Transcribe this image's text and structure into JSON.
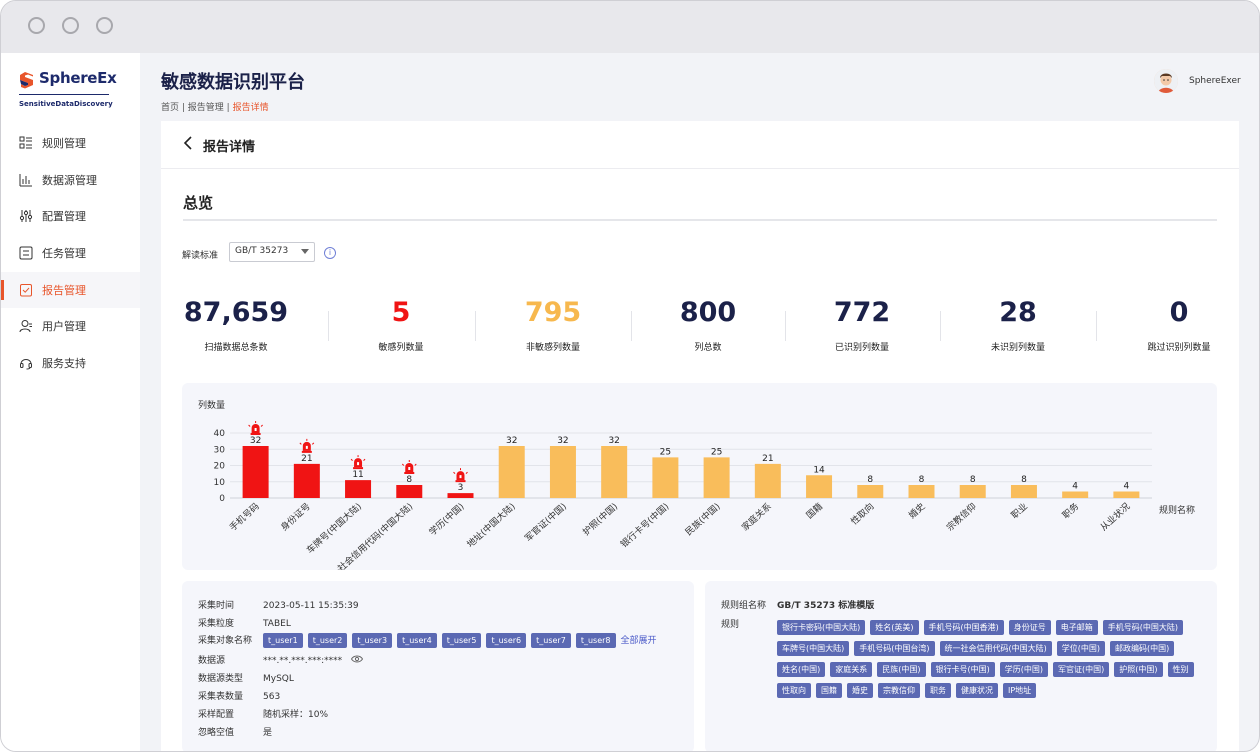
{
  "app": {
    "logo_name": "SphereEx",
    "logo_sub": "SensitiveDataDiscovery",
    "title": "敏感数据识别平台",
    "user_name": "SphereExer"
  },
  "breadcrumb": {
    "home": "首页",
    "sep1": " | ",
    "reports": "报告管理",
    "sep2": " | ",
    "current": "报告详情"
  },
  "sidebar": {
    "items": [
      {
        "label": "规则管理",
        "icon": "list-rules-icon"
      },
      {
        "label": "数据源管理",
        "icon": "bar-chart-icon"
      },
      {
        "label": "配置管理",
        "icon": "sliders-icon"
      },
      {
        "label": "任务管理",
        "icon": "task-list-icon"
      },
      {
        "label": "报告管理",
        "icon": "report-check-icon",
        "active": true
      },
      {
        "label": "用户管理",
        "icon": "user-icon"
      },
      {
        "label": "服务支持",
        "icon": "headset-icon"
      }
    ]
  },
  "detail": {
    "back_icon": "chevron-left-icon",
    "title": "报告详情",
    "overview_title": "总览",
    "standard_label": "解读标准",
    "standard_value": "GB/T 35273",
    "info_icon": "info-icon",
    "info_glyph": "i"
  },
  "stats": [
    {
      "value": "87,659",
      "label": "扫描数据总条数",
      "color": "#1b2149"
    },
    {
      "value": "5",
      "label": "敏感列数量",
      "color": "#f01414"
    },
    {
      "value": "795",
      "label": "非敏感列数量",
      "color": "#f7b84e"
    },
    {
      "value": "800",
      "label": "列总数",
      "color": "#1b2149"
    },
    {
      "value": "772",
      "label": "已识别列数量",
      "color": "#1b2149"
    },
    {
      "value": "28",
      "label": "未识别列数量",
      "color": "#1b2149"
    },
    {
      "value": "0",
      "label": "跳过识别列数量",
      "color": "#1b2149"
    }
  ],
  "chart_data": {
    "type": "bar",
    "ylabel": "列数量",
    "xlabel": "规则名称",
    "ylim": [
      0,
      40
    ],
    "yticks": [
      0,
      10,
      20,
      30,
      40
    ],
    "grid": true,
    "categories": [
      "手机号码",
      "身份证号",
      "车牌号(中国大陆)",
      "统一社会信用代码(中国大陆)",
      "学历(中国)",
      "地址(中国大陆)",
      "军官证(中国)",
      "护照(中国)",
      "银行卡号(中国)",
      "民族(中国)",
      "家庭关系",
      "国籍",
      "性取向",
      "婚史",
      "宗教信仰",
      "职业",
      "职务",
      "从业状况"
    ],
    "values": [
      32,
      21,
      11,
      8,
      3,
      32,
      32,
      32,
      25,
      25,
      21,
      14,
      8,
      8,
      8,
      8,
      4,
      4
    ],
    "sensitive": [
      true,
      true,
      true,
      true,
      true,
      false,
      false,
      false,
      false,
      false,
      false,
      false,
      false,
      false,
      false,
      false,
      false,
      false
    ],
    "colors": {
      "sensitive": "#f01414",
      "normal": "#f9bd5b"
    },
    "alert_icon": "alarm-light-icon"
  },
  "collection": {
    "rows": [
      {
        "key": "采集时间",
        "value": "2023-05-11  15:35:39"
      },
      {
        "key": "采集粒度",
        "value": "TABEL"
      },
      {
        "key": "采集对象名称",
        "tags": [
          "t_user1",
          "t_user2",
          "t_user3",
          "t_user4",
          "t_user5",
          "t_user6",
          "t_user7",
          "t_user8"
        ],
        "expand": "全部展开"
      },
      {
        "key": "数据源",
        "value": "***.**.***.***:****",
        "icon": "eye-icon"
      },
      {
        "key": "数据源类型",
        "value": "MySQL"
      },
      {
        "key": "采集表数量",
        "value": "563"
      },
      {
        "key": "采样配置",
        "value": "随机采样：10%"
      },
      {
        "key": "忽略空值",
        "value": "是"
      }
    ]
  },
  "rules": {
    "group_key": "规则组名称",
    "group_value": "GB/T 35273 标准模版",
    "rules_key": "规则",
    "tag_rows": [
      [
        "银行卡密码(中国大陆)",
        "姓名(英美)",
        "手机号码(中国香港)",
        "身份证号",
        "电子邮箱",
        "手机号码(中国大陆)"
      ],
      [
        "车牌号(中国大陆)",
        "手机号码(中国台湾)",
        "统一社会信用代码(中国大陆)",
        "学位(中国)",
        "邮政编码(中国)"
      ],
      [
        "姓名(中国)",
        "家庭关系",
        "民族(中国)",
        "银行卡号(中国)",
        "学历(中国)",
        "军官证(中国)",
        "护照(中国)",
        "性别"
      ],
      [
        "性取向",
        "国籍",
        "婚史",
        "宗教信仰",
        "职务",
        "健康状况",
        "IP地址"
      ]
    ]
  }
}
